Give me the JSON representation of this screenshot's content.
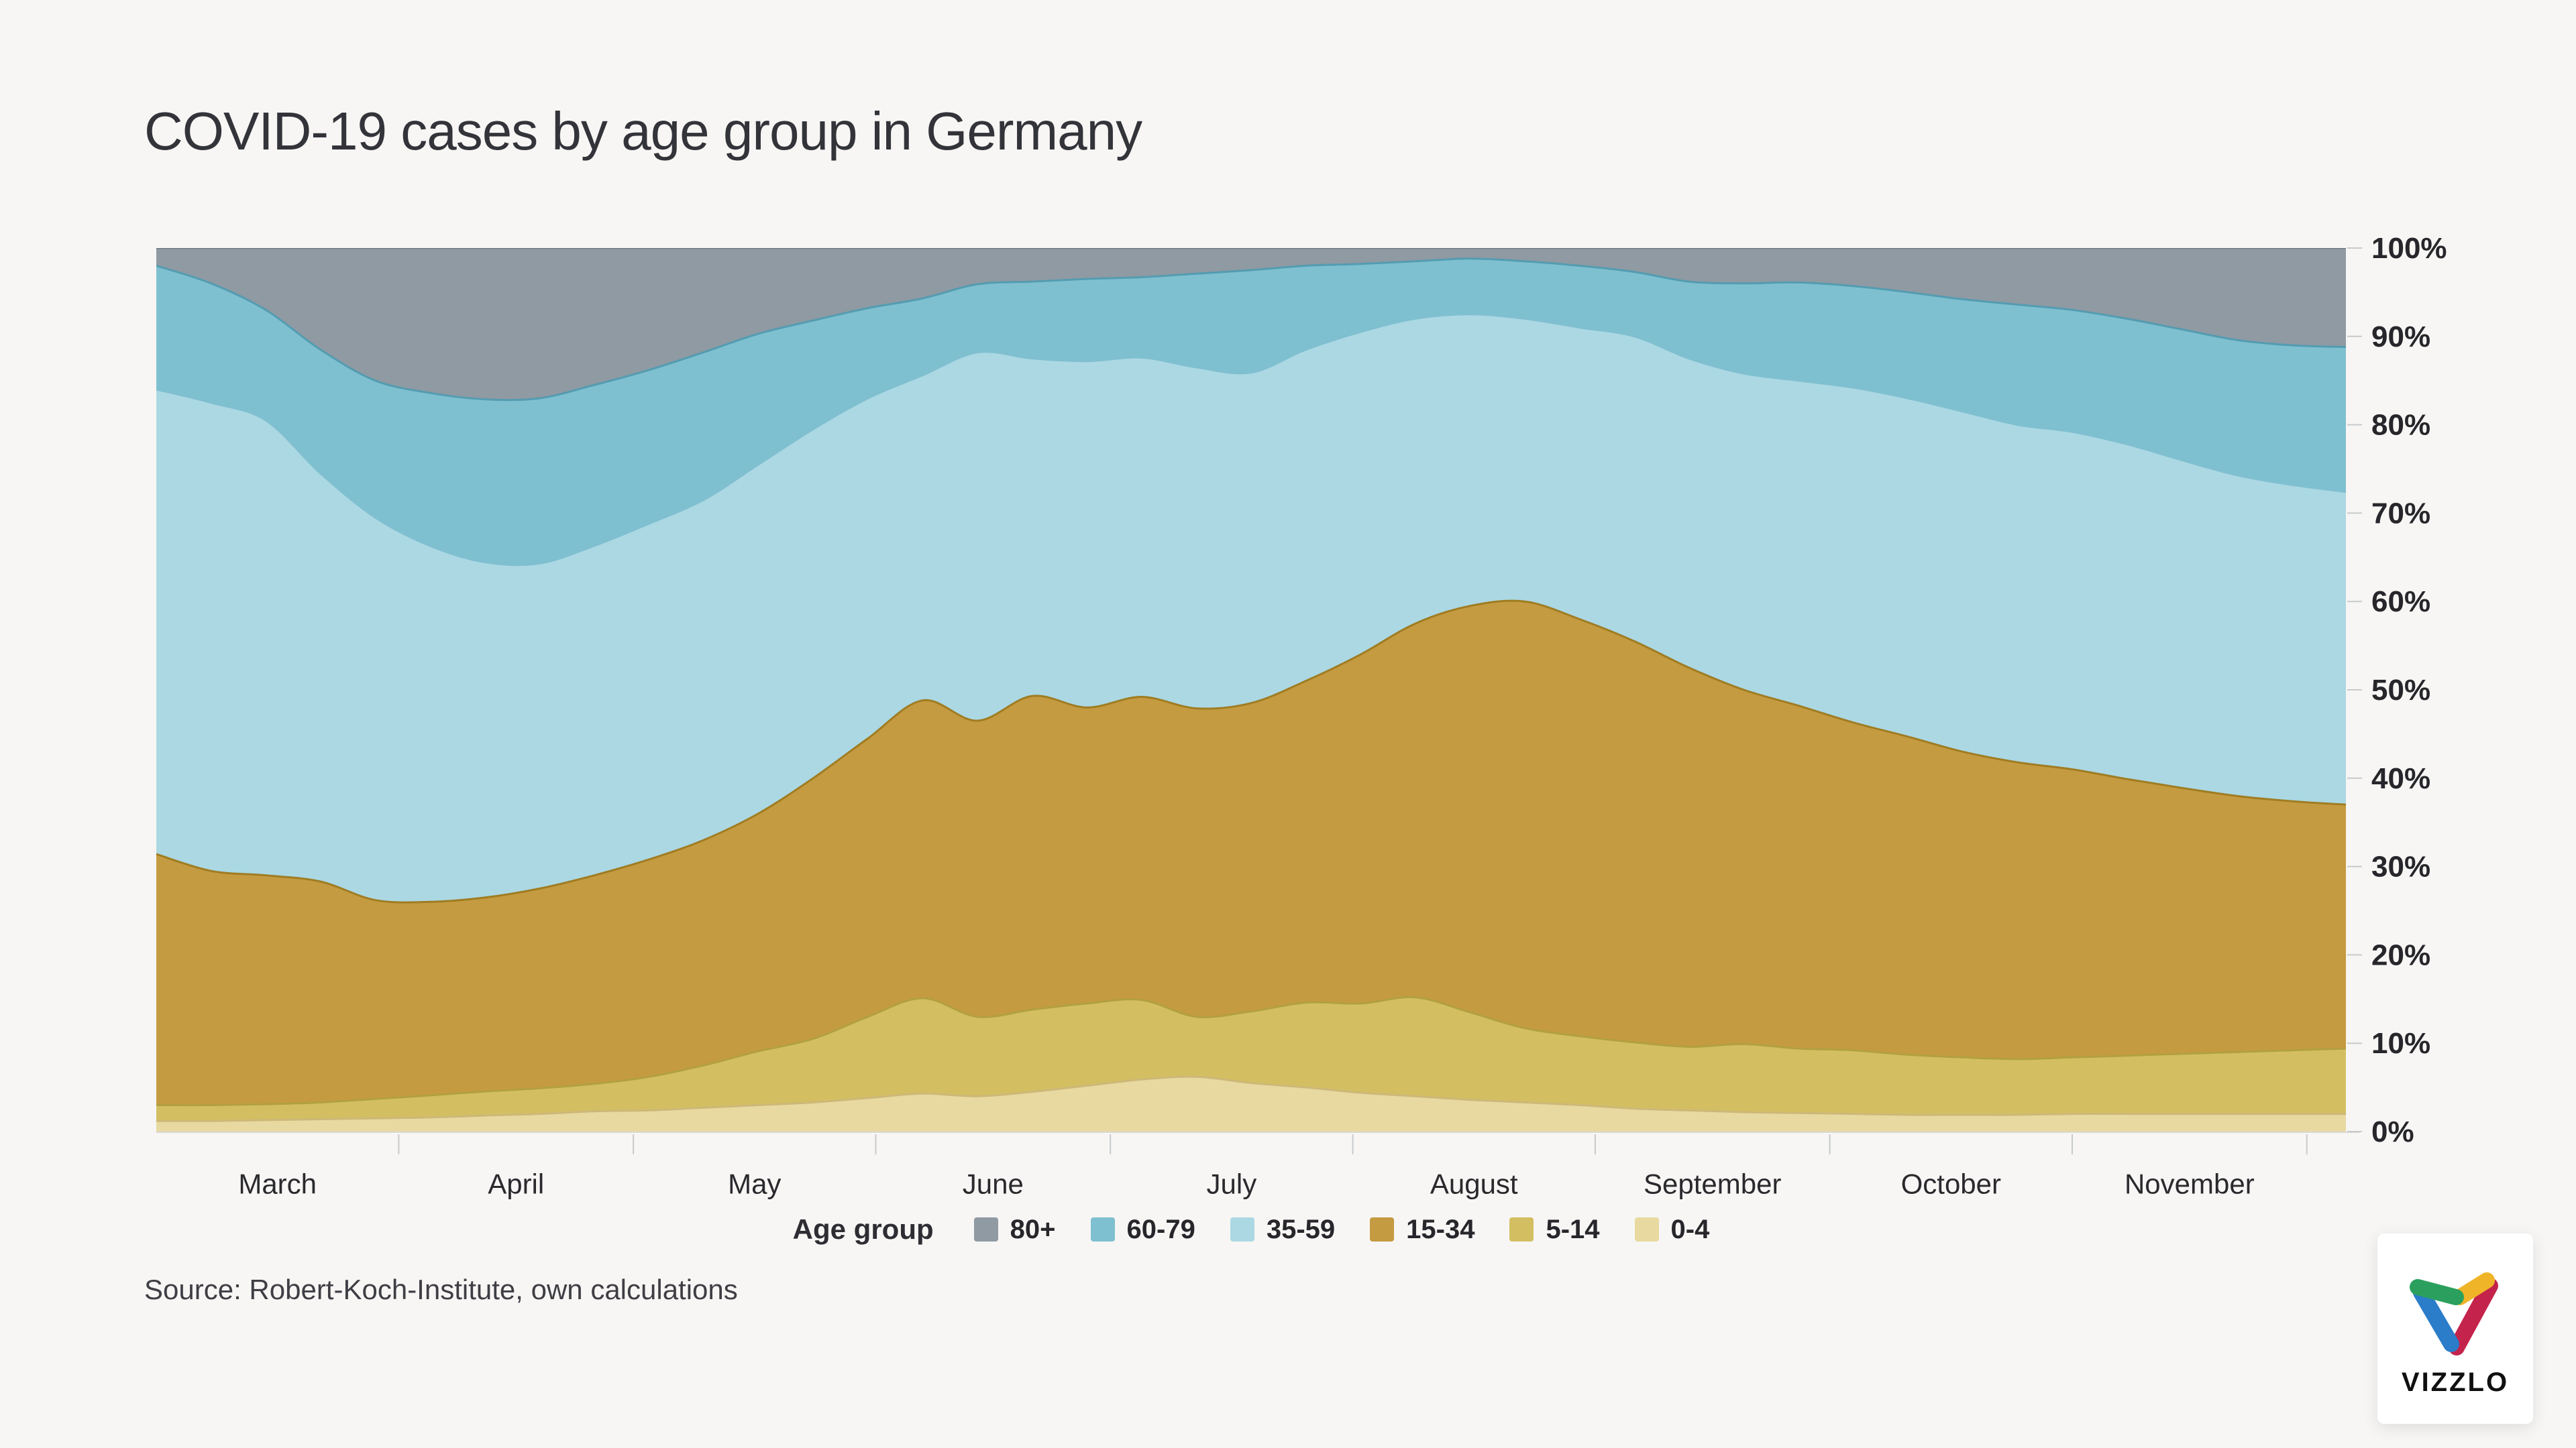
{
  "title": "COVID-19 cases by age group in Germany",
  "source": "Source: Robert-Koch-Institute, own calculations",
  "legend": {
    "title": "Age group"
  },
  "logo": {
    "text": "VIZZLO",
    "green": "#2ba05e",
    "blue": "#2b7cc9",
    "yellow": "#f0b429",
    "red": "#c4234b"
  },
  "colors": {
    "background": "#f7f6f4",
    "title_text": "#33333a",
    "axis_text": "#26262b",
    "tick_line": "#c7cacc",
    "baseline": "#d9d9d5",
    "source_text": "#3e3e44"
  },
  "chart_data": {
    "type": "area",
    "stacked": "percent",
    "title": "COVID-19 cases by age group in Germany",
    "xlabel": "",
    "ylabel": "",
    "ylim": [
      0,
      100
    ],
    "y_tick_step": 10,
    "y_format": "percent",
    "grid": false,
    "legend_position": "bottom",
    "x_months": [
      "March",
      "April",
      "May",
      "June",
      "July",
      "August",
      "September",
      "October",
      "November"
    ],
    "month_day_offsets": [
      0,
      31,
      61,
      92,
      122,
      153,
      184,
      214,
      245,
      275
    ],
    "x_day_span": 280,
    "categories": [
      "Mar 1",
      "Mar 8",
      "Mar 15",
      "Mar 22",
      "Mar 29",
      "Apr 5",
      "Apr 12",
      "Apr 19",
      "Apr 26",
      "May 3",
      "May 10",
      "May 17",
      "May 24",
      "May 31",
      "Jun 7",
      "Jun 14",
      "Jun 21",
      "Jun 28",
      "Jul 5",
      "Jul 12",
      "Jul 19",
      "Jul 26",
      "Aug 2",
      "Aug 9",
      "Aug 16",
      "Aug 23",
      "Aug 30",
      "Sep 6",
      "Sep 13",
      "Sep 20",
      "Sep 27",
      "Oct 4",
      "Oct 11",
      "Oct 18",
      "Oct 25",
      "Nov 1",
      "Nov 8",
      "Nov 15",
      "Nov 22",
      "Nov 29",
      "Dec 6"
    ],
    "series": [
      {
        "name": "0-4",
        "color": "#e8d9a0",
        "edge": "#cdb878",
        "values": [
          1.2,
          1.2,
          1.3,
          1.4,
          1.5,
          1.6,
          1.8,
          2.0,
          2.3,
          2.4,
          2.7,
          3.0,
          3.3,
          3.8,
          4.3,
          4.0,
          4.5,
          5.2,
          5.9,
          6.2,
          5.5,
          5.0,
          4.4,
          4.0,
          3.6,
          3.3,
          3.0,
          2.6,
          2.4,
          2.2,
          2.1,
          2.0,
          1.9,
          1.9,
          1.9,
          2.0,
          2.0,
          2.0,
          2.0,
          2.0,
          2.0
        ]
      },
      {
        "name": "5-14",
        "color": "#d3bf62",
        "edge": "#b2a040",
        "values": [
          1.8,
          1.8,
          1.8,
          1.9,
          2.2,
          2.5,
          2.7,
          2.9,
          3.1,
          3.8,
          4.8,
          6.1,
          7.2,
          9.2,
          10.8,
          9.0,
          9.3,
          9.3,
          9.0,
          6.8,
          8.1,
          9.6,
          10.1,
          11.2,
          9.9,
          8.4,
          7.8,
          7.5,
          7.2,
          7.7,
          7.3,
          7.2,
          6.8,
          6.5,
          6.3,
          6.4,
          6.6,
          6.8,
          7.0,
          7.2,
          7.4
        ]
      },
      {
        "name": "15-34",
        "color": "#c59b41",
        "edge": "#a07c22",
        "values": [
          28.4,
          26.5,
          25.9,
          25.0,
          22.5,
          21.9,
          21.8,
          22.6,
          23.6,
          24.6,
          25.5,
          26.9,
          29.5,
          31.5,
          33.7,
          33.5,
          35.5,
          33.5,
          34.3,
          34.9,
          34.9,
          36.4,
          39.5,
          42.3,
          46.0,
          48.3,
          47.2,
          45.4,
          42.9,
          40.1,
          38.8,
          37.1,
          36.0,
          34.6,
          33.6,
          32.6,
          31.3,
          30.1,
          29.0,
          28.2,
          27.6
        ]
      },
      {
        "name": "35-59",
        "color": "#abd8e3",
        "edge": "#7fbfd0",
        "values": [
          52.6,
          53.0,
          51.5,
          46.2,
          43.3,
          40.3,
          37.7,
          36.8,
          37.3,
          38.0,
          38.5,
          39.5,
          39.5,
          38.5,
          36.8,
          41.7,
          38.2,
          39.2,
          38.4,
          38.6,
          37.4,
          37.5,
          36.5,
          34.5,
          33.0,
          32.0,
          33.0,
          34.5,
          35.0,
          35.8,
          36.8,
          37.9,
          38.3,
          38.5,
          38.2,
          38.2,
          37.9,
          37.1,
          36.3,
          35.8,
          35.4
        ]
      },
      {
        "name": "60-79",
        "color": "#7fc0d0",
        "edge": "#549cb1",
        "values": [
          14.0,
          13.5,
          12.5,
          14.0,
          15.5,
          17.3,
          18.3,
          18.7,
          18.2,
          17.4,
          16.7,
          14.8,
          12.3,
          10.2,
          8.7,
          7.7,
          8.7,
          9.3,
          9.1,
          10.6,
          11.6,
          9.5,
          7.7,
          6.5,
          6.3,
          6.5,
          7.0,
          7.3,
          8.7,
          10.2,
          11.1,
          11.5,
          12.0,
          12.7,
          13.6,
          13.8,
          14.2,
          14.8,
          15.3,
          15.8,
          16.4
        ]
      },
      {
        "name": "80+",
        "color": "#8f9aa3",
        "edge": "#6d7883",
        "values": [
          2.0,
          4.0,
          7.0,
          11.5,
          15.0,
          16.4,
          17.0,
          17.0,
          15.5,
          13.8,
          11.8,
          9.7,
          8.2,
          6.8,
          5.7,
          4.1,
          3.8,
          3.5,
          3.3,
          2.9,
          2.5,
          2.0,
          1.8,
          1.5,
          1.2,
          1.5,
          2.0,
          2.7,
          3.8,
          4.0,
          3.9,
          4.3,
          5.0,
          5.8,
          6.4,
          7.0,
          8.0,
          9.2,
          10.4,
          11.0,
          11.2
        ]
      }
    ]
  }
}
